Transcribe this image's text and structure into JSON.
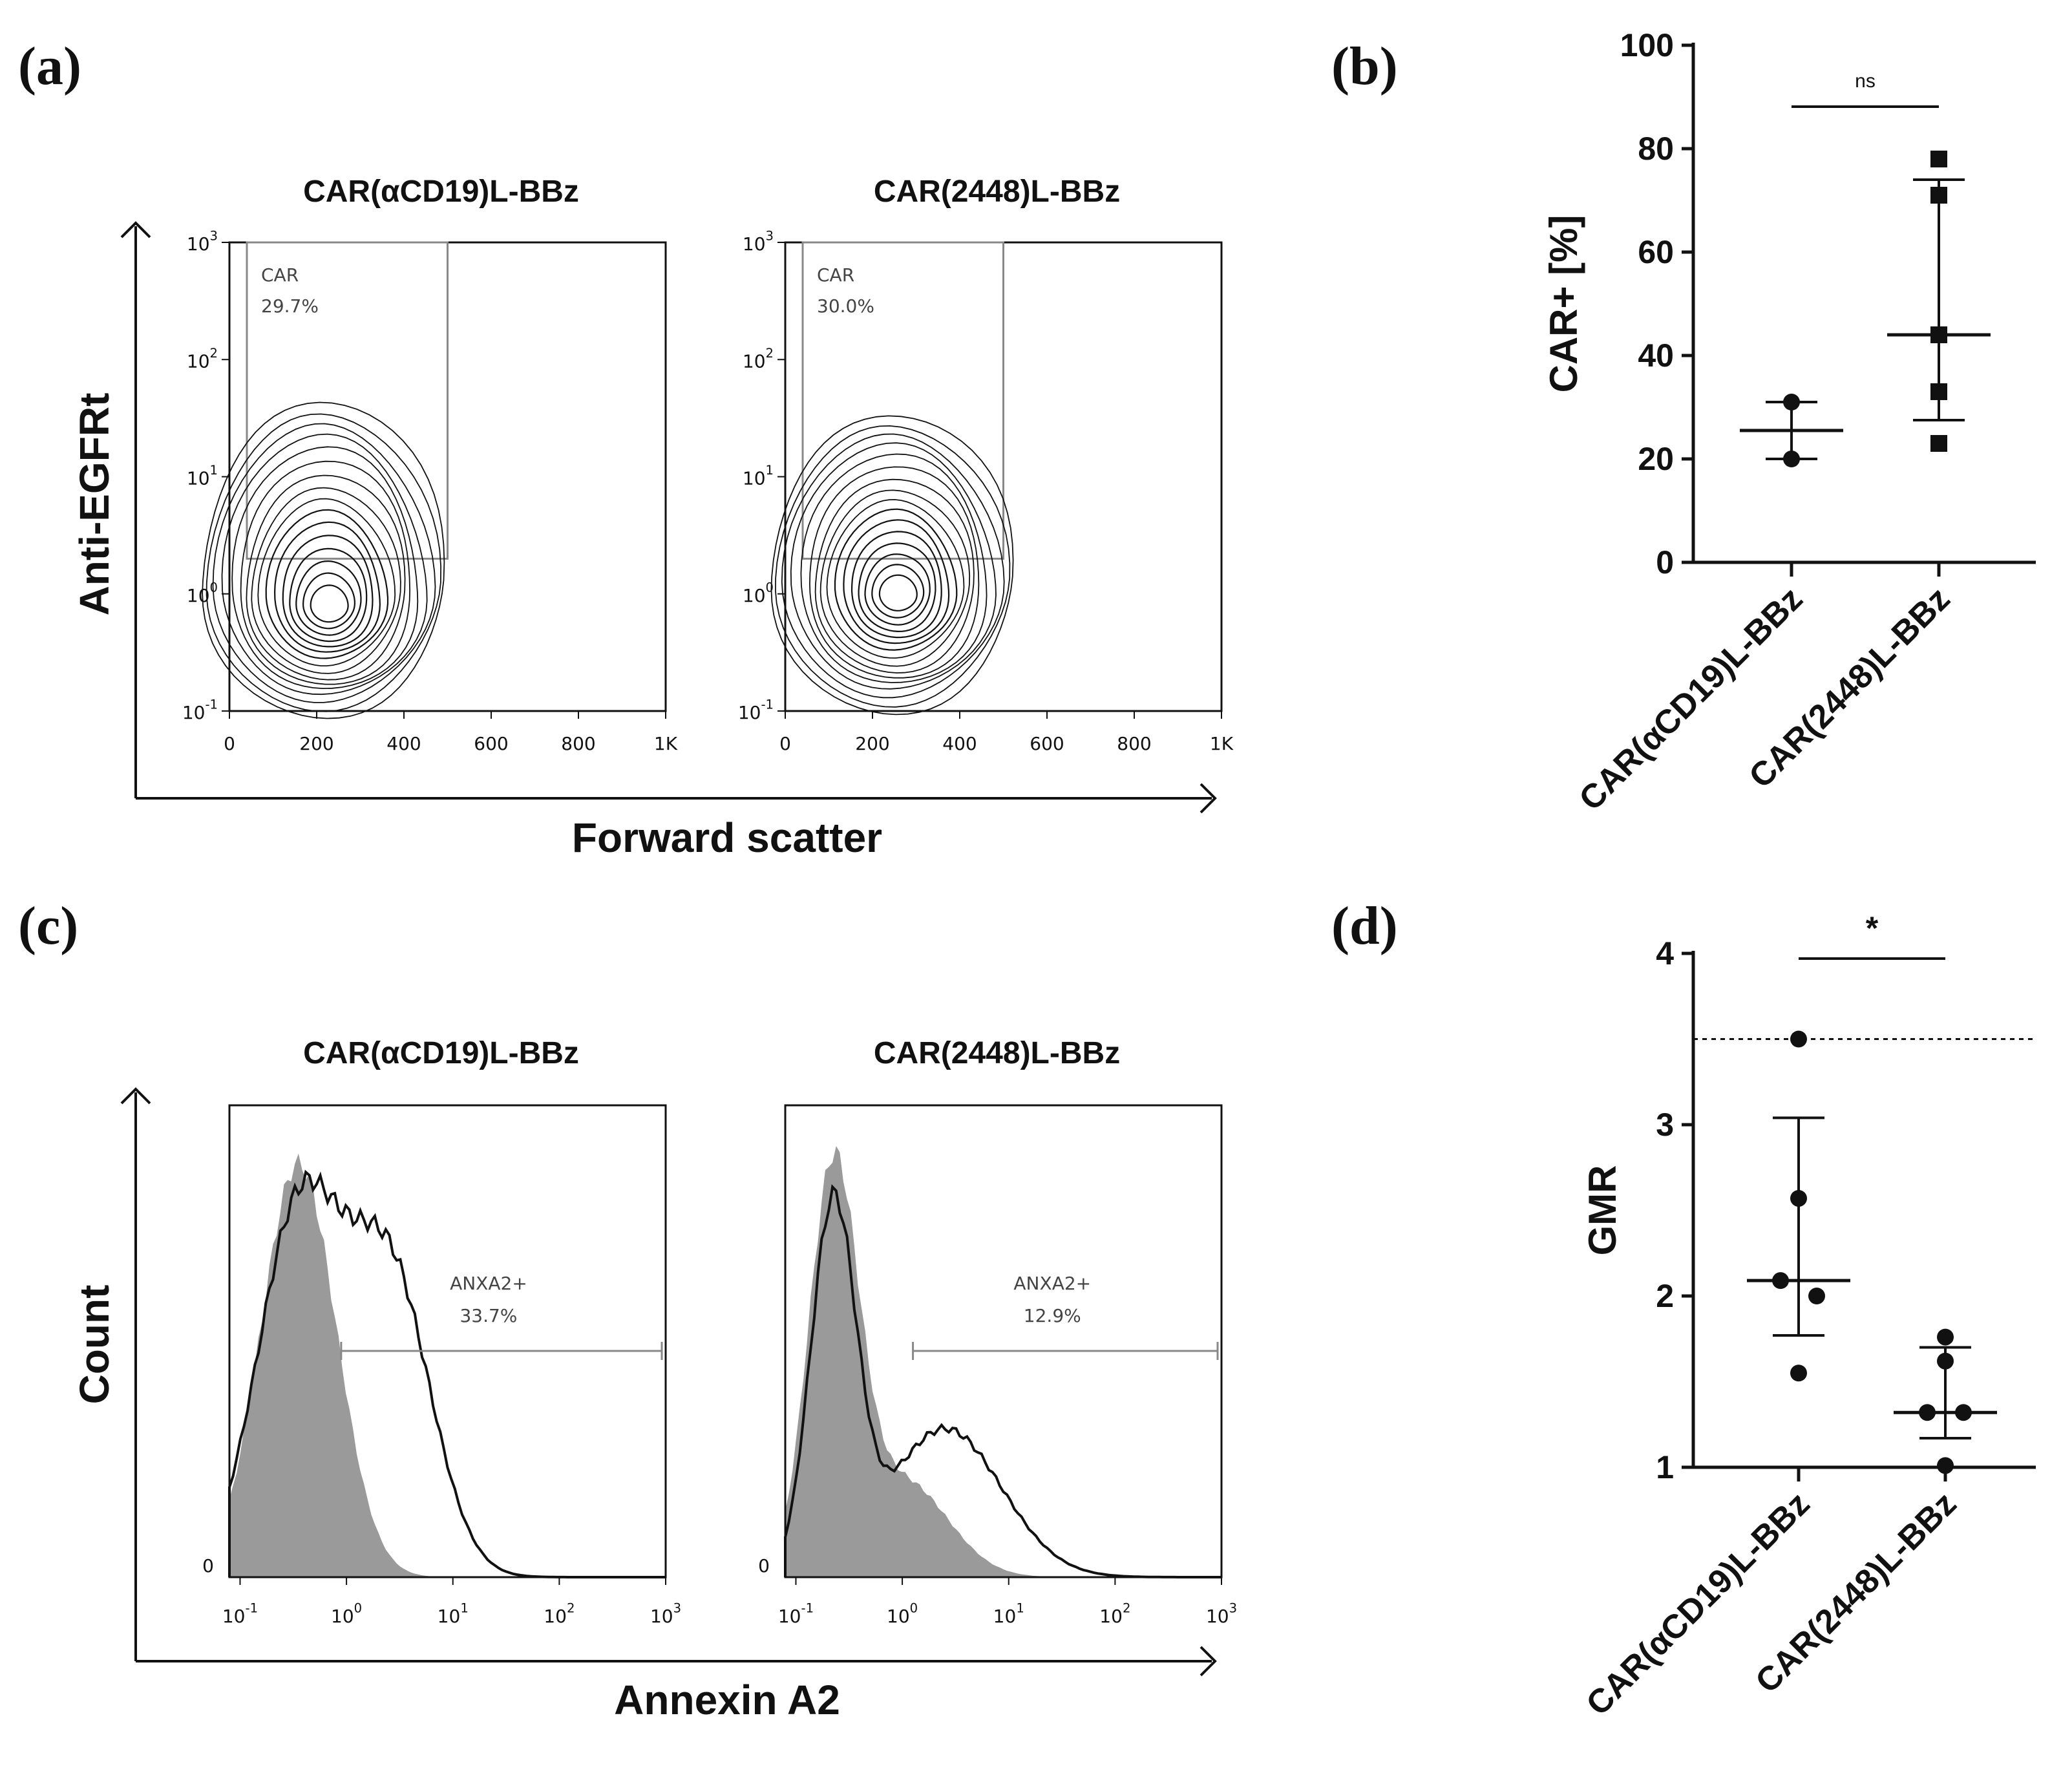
{
  "figure": {
    "panel_labels": [
      "(a)",
      "(b)",
      "(c)",
      "(d)"
    ]
  },
  "colors": {
    "ink": "#111111",
    "gate": "#888888",
    "fill_gray": "#9a9a9a"
  },
  "chart_data": [
    {
      "panel": "(a)",
      "type": "scatter",
      "subtype": "flow-cytometry-contour",
      "xlabel": "Forward scatter",
      "ylabel": "Anti-EGFRt",
      "x_ticks": [
        "0",
        "200",
        "400",
        "600",
        "800",
        "1K"
      ],
      "y_ticks": [
        "10-1",
        "100",
        "101",
        "102",
        "103"
      ],
      "xlim": [
        0,
        1000
      ],
      "ylim_log10": [
        -1,
        3
      ],
      "plots": [
        {
          "title": "CAR(αCD19)L-BBz",
          "gate_name": "CAR",
          "gate_value": "29.7%",
          "gate": {
            "x": [
              40,
              500
            ],
            "y_log10": [
              0.3,
              3.0
            ]
          },
          "population_center": {
            "x": 230,
            "y_log10": 0.0
          }
        },
        {
          "title": "CAR(2448)L-BBz",
          "gate_name": "CAR",
          "gate_value": "30.0%",
          "gate": {
            "x": [
              40,
              500
            ],
            "y_log10": [
              0.3,
              3.0
            ]
          },
          "population_center": {
            "x": 260,
            "y_log10": 0.1
          }
        }
      ]
    },
    {
      "panel": "(b)",
      "type": "scatter",
      "ylabel": "CAR+ [%]",
      "categories": [
        "CAR(αCD19)L-BBz",
        "CAR(2448)L-BBz"
      ],
      "y_ticks": [
        "0",
        "20",
        "40",
        "60",
        "80",
        "100"
      ],
      "ylim": [
        0,
        100
      ],
      "series": [
        {
          "name": "CAR(αCD19)L-BBz",
          "marker": "circle",
          "values": [
            31,
            20
          ],
          "median": 25.5,
          "error": [
            20,
            31
          ]
        },
        {
          "name": "CAR(2448)L-BBz",
          "marker": "square",
          "values": [
            78,
            71,
            44,
            33,
            23
          ],
          "median": 44,
          "error": [
            27.5,
            74
          ]
        }
      ],
      "significance": "ns"
    },
    {
      "panel": "(c)",
      "type": "area",
      "subtype": "flow-cytometry-histogram",
      "xlabel": "Annexin A2",
      "ylabel": "Count",
      "x_ticks": [
        "10-1",
        "100",
        "101",
        "102",
        "103"
      ],
      "y_ticks": [
        "0"
      ],
      "plots": [
        {
          "title": "CAR(αCD19)L-BBz",
          "gate_name": "ANXA2+",
          "gate_value": "33.7%"
        },
        {
          "title": "CAR(2448)L-BBz",
          "gate_name": "ANXA2+",
          "gate_value": "12.9%"
        }
      ]
    },
    {
      "panel": "(d)",
      "type": "scatter",
      "ylabel": "GMR",
      "categories": [
        "CAR(αCD19)L-BBz",
        "CAR(2448)L-BBz"
      ],
      "y_ticks": [
        "1",
        "2",
        "3",
        "4"
      ],
      "ylim": [
        1,
        4
      ],
      "reference_line": 3.5,
      "series": [
        {
          "name": "CAR(αCD19)L-BBz",
          "marker": "circle",
          "values": [
            3.5,
            2.57,
            2.09,
            2.0,
            1.55
          ],
          "median": 2.09,
          "error": [
            1.77,
            3.04
          ]
        },
        {
          "name": "CAR(2448)L-BBz",
          "marker": "circle",
          "values": [
            1.76,
            1.62,
            1.32,
            1.32,
            1.01
          ],
          "median": 1.32,
          "error": [
            1.17,
            1.7
          ]
        }
      ],
      "significance": "*"
    }
  ]
}
